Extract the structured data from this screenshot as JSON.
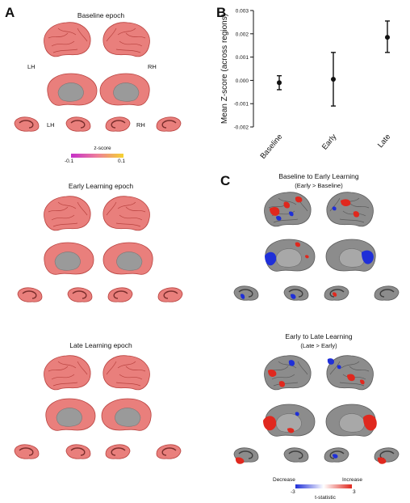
{
  "panels": {
    "a": "A",
    "b": "B",
    "c": "C"
  },
  "panel_a": {
    "epochs": [
      "Baseline epoch",
      "Early Learning epoch",
      "Late Learning epoch"
    ],
    "hemi_left": "LH",
    "hemi_right": "RH",
    "colorbar": {
      "label": "z-score",
      "min": "-0.1",
      "max": "0.1"
    }
  },
  "panel_c": {
    "contrast1": {
      "title": "Baseline to Early Learning",
      "subtitle": "(Early > Baseline)"
    },
    "contrast2": {
      "title": "Early to Late Learning",
      "subtitle": "(Late > Early)"
    },
    "colorbar": {
      "decrease": "Decrease",
      "increase": "Increase",
      "min": "-3",
      "max": "3",
      "label": "t-statistic"
    }
  },
  "colors": {
    "cortex_pink": "#e97f7c",
    "cortex_dark": "#b8423f",
    "cortex_gray": "#8c8c8c",
    "medial_gray": "#9a9a9a",
    "red_cluster": "#e0281e",
    "blue_cluster": "#1f2fd8"
  },
  "chart_data": {
    "type": "scatter",
    "categories": [
      "Baseline",
      "Early",
      "Late"
    ],
    "values": [
      -0.0001,
      5e-05,
      0.00185
    ],
    "errors_low": [
      -0.0004,
      -0.0011,
      0.0012
    ],
    "errors_high": [
      0.0002,
      0.0012,
      0.00255
    ],
    "ylabel": "Mean Z-score (across regions)",
    "ylim": [
      -0.002,
      0.003
    ],
    "yticks": [
      "-0.002",
      "-0.001",
      "0.000",
      "0.001",
      "0.002",
      "0.003"
    ],
    "grid": false
  }
}
